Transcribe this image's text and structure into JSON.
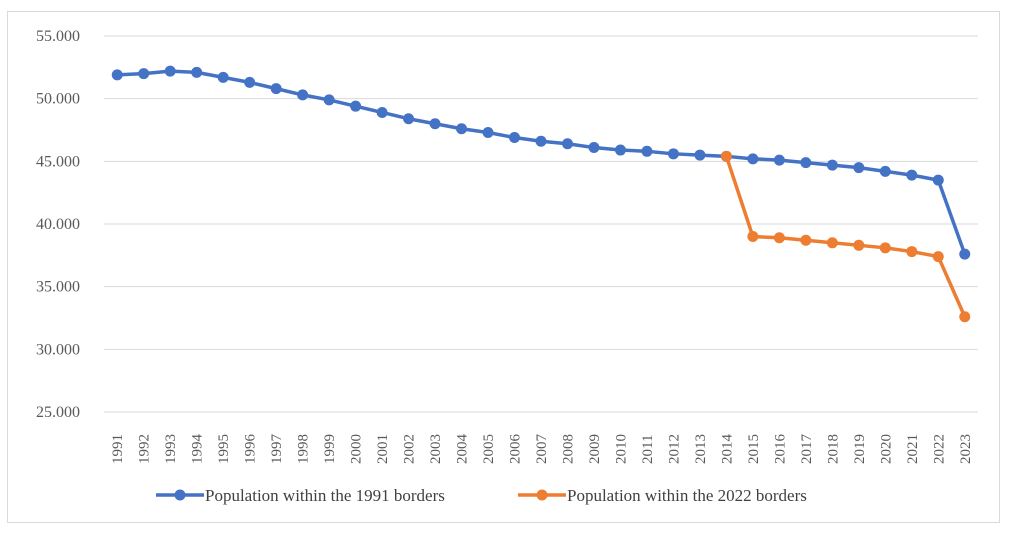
{
  "chart_data": {
    "type": "line",
    "title": "",
    "xlabel": "",
    "ylabel": "",
    "ylim": [
      25000,
      55000
    ],
    "yticks": [
      25000,
      30000,
      35000,
      40000,
      45000,
      50000,
      55000
    ],
    "ytick_labels": [
      "25.000",
      "30.000",
      "35.000",
      "40.000",
      "45.000",
      "50.000",
      "55.000"
    ],
    "categories": [
      "1991",
      "1992",
      "1993",
      "1994",
      "1995",
      "1996",
      "1997",
      "1998",
      "1999",
      "2000",
      "2001",
      "2002",
      "2003",
      "2004",
      "2005",
      "2006",
      "2007",
      "2008",
      "2009",
      "2010",
      "2011",
      "2012",
      "2013",
      "2014",
      "2015",
      "2016",
      "2017",
      "2018",
      "2019",
      "2020",
      "2021",
      "2022",
      "2023"
    ],
    "grid": true,
    "legend": "bottom",
    "series": [
      {
        "name": "Population within the 1991 borders",
        "color": "#4472c4",
        "values": [
          51900,
          52000,
          52200,
          52100,
          51700,
          51300,
          50800,
          50300,
          49900,
          49400,
          48900,
          48400,
          48000,
          47600,
          47300,
          46900,
          46600,
          46400,
          46100,
          45900,
          45800,
          45600,
          45500,
          45400,
          45200,
          45100,
          44900,
          44700,
          44500,
          44200,
          43900,
          43500,
          37600
        ]
      },
      {
        "name": "Population within the 2022 borders",
        "color": "#ed7d31",
        "values": [
          null,
          null,
          null,
          null,
          null,
          null,
          null,
          null,
          null,
          null,
          null,
          null,
          null,
          null,
          null,
          null,
          null,
          null,
          null,
          null,
          null,
          null,
          null,
          45400,
          39000,
          38900,
          38700,
          38500,
          38300,
          38100,
          37800,
          37400,
          32600
        ]
      }
    ]
  }
}
